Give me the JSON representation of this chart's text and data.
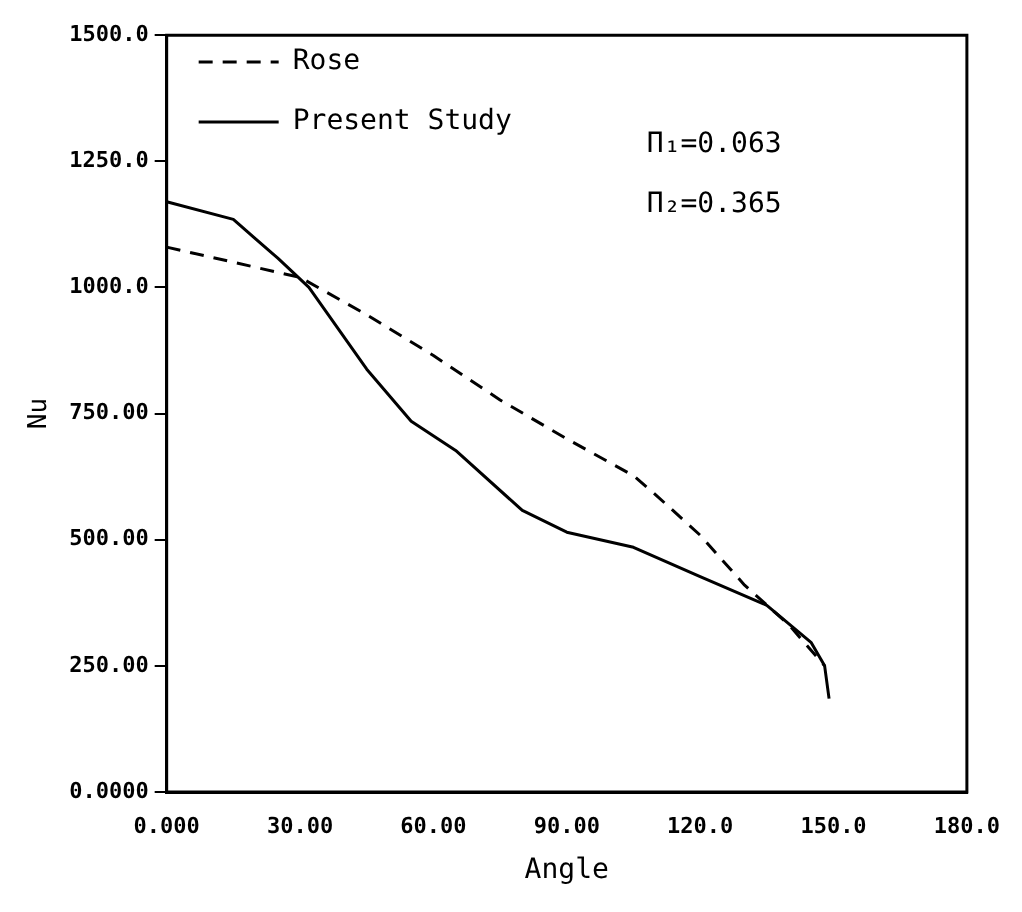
{
  "chart_data": {
    "type": "line",
    "xlabel": "Angle",
    "ylabel": "Nu",
    "xlim": [
      0,
      180
    ],
    "ylim": [
      0,
      1500
    ],
    "xticks": [
      {
        "value": 0,
        "label": "0.000"
      },
      {
        "value": 30,
        "label": "30.00"
      },
      {
        "value": 60,
        "label": "60.00"
      },
      {
        "value": 90,
        "label": "90.00"
      },
      {
        "value": 120,
        "label": "120.0"
      },
      {
        "value": 150,
        "label": "150.0"
      },
      {
        "value": 180,
        "label": "180.0"
      }
    ],
    "yticks": [
      {
        "value": 0,
        "label": "0.0000"
      },
      {
        "value": 250,
        "label": "250.00"
      },
      {
        "value": 500,
        "label": "500.00"
      },
      {
        "value": 750,
        "label": "750.00"
      },
      {
        "value": 1000,
        "label": "1000.0"
      },
      {
        "value": 1250,
        "label": "1250.0"
      },
      {
        "value": 1500,
        "label": "1500.0"
      }
    ],
    "grid": false,
    "legend": "top left",
    "marker": "none",
    "annotations": [
      "Π₁=0.063",
      "Π₂=0.365"
    ],
    "series": [
      {
        "name": "Rose",
        "color": "#000000",
        "line_style": "dashed",
        "x": [
          0,
          15,
          30,
          45,
          60,
          75,
          90,
          105,
          110,
          120,
          130,
          140,
          148
        ],
        "values": [
          1080,
          1050,
          1020,
          946,
          865,
          777,
          700,
          627,
          589,
          509,
          410,
          331,
          250
        ]
      },
      {
        "name": "Present Study",
        "color": "#000000",
        "line_style": "solid",
        "x": [
          0,
          15,
          25,
          32,
          45,
          55,
          65,
          80,
          90,
          105,
          120,
          135,
          145,
          148,
          149
        ],
        "values": [
          1170,
          1135,
          1058,
          1000,
          838,
          735,
          677,
          558,
          515,
          485,
          427,
          370,
          296,
          250,
          185
        ]
      }
    ]
  }
}
